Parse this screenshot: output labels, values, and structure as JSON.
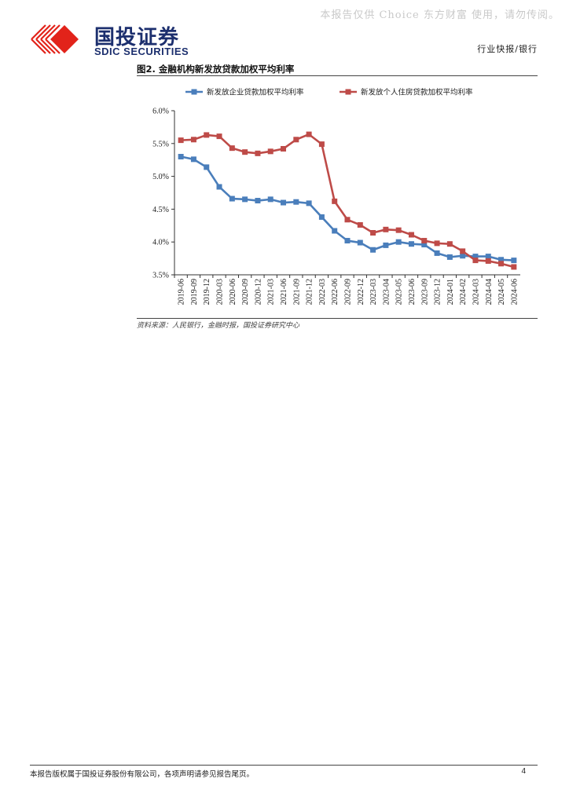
{
  "watermark": "本报告仅供 Choice 东方财富 使用，请勿传阅。",
  "brand": {
    "name_cn": "国投证券",
    "name_en": "SDIC SECURITIES",
    "logo_color": "#e2231a",
    "text_color": "#1c2f6e"
  },
  "header": {
    "section": "行业快报/银行"
  },
  "figure": {
    "title": "图2. 金融机构新发放贷款加权平均利率",
    "source": "资料来源：人民银行，金融时报，国投证券研究中心"
  },
  "footer": {
    "disclaimer": "本报告版权属于国投证券股份有限公司，各项声明请参见报告尾页。",
    "page": "4"
  },
  "chart_data": {
    "type": "line",
    "title": "",
    "xlabel": "",
    "ylabel": "",
    "ylim": [
      3.5,
      6.0
    ],
    "yticks": [
      "3.5%",
      "4.0%",
      "4.5%",
      "5.0%",
      "5.5%",
      "6.0%"
    ],
    "grid": false,
    "legend_position": "top",
    "categories": [
      "2019-06",
      "2019-09",
      "2019-12",
      "2020-03",
      "2020-06",
      "2020-09",
      "2020-12",
      "2021-03",
      "2021-06",
      "2021-09",
      "2021-12",
      "2022-03",
      "2022-06",
      "2022-09",
      "2022-12",
      "2023-03",
      "2023-04",
      "2023-05",
      "2023-06",
      "2023-09",
      "2023-12",
      "2024-01",
      "2024-02",
      "2024-03",
      "2024-04",
      "2024-05",
      "2024-06"
    ],
    "series": [
      {
        "name": "新发放企业贷款加权平均利率",
        "color": "#4a7ebb",
        "values": [
          5.3,
          5.26,
          5.14,
          4.84,
          4.66,
          4.65,
          4.63,
          4.65,
          4.6,
          4.61,
          4.59,
          4.38,
          4.17,
          4.02,
          3.99,
          3.88,
          3.95,
          4.0,
          3.97,
          3.96,
          3.83,
          3.77,
          3.79,
          3.78,
          3.78,
          3.73,
          3.72
        ]
      },
      {
        "name": "新发放个人住房贷款加权平均利率",
        "color": "#be4b48",
        "values": [
          5.55,
          5.56,
          5.63,
          5.61,
          5.43,
          5.37,
          5.35,
          5.38,
          5.42,
          5.56,
          5.64,
          5.49,
          4.62,
          4.34,
          4.26,
          4.14,
          4.19,
          4.18,
          4.11,
          4.02,
          3.98,
          3.97,
          3.86,
          3.72,
          3.71,
          3.67,
          3.62
        ]
      }
    ]
  }
}
